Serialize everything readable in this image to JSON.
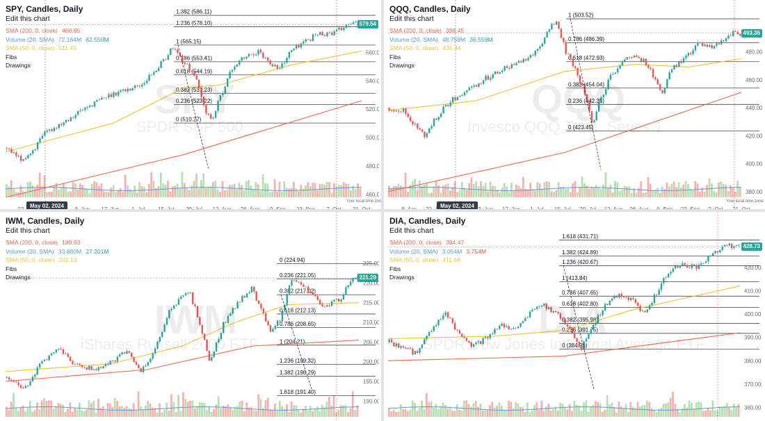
{
  "colors": {
    "up": "#26a69a",
    "down": "#ef5350",
    "sma200": "#f0674a",
    "sma50": "#f2c230",
    "volma": "#5b9bd5",
    "volup": "#b8dfb4",
    "voldown": "#f3b4b0",
    "tag": "#26a69a"
  },
  "panels": [
    {
      "id": "spy",
      "title": "SPY, Candles, Daily",
      "edit": "Edit this chart",
      "legend": [
        {
          "label": "SMA (200, 0, close)",
          "values": [
            "468.85"
          ],
          "color": "#f0674a"
        },
        {
          "label": "Volume (20, SMA)",
          "values": [
            "72.164M",
            "62.550M"
          ],
          "color": "#5b9bd5",
          "value_colors": [
            "#5b9bd5",
            "#26a69a"
          ]
        },
        {
          "label": "SMA (50, 0, close)",
          "values": [
            "511.45"
          ],
          "color": "#f2c230"
        },
        {
          "label": "Fibs",
          "values": [],
          "color": "#131722"
        },
        {
          "label": "Drawings",
          "values": [],
          "color": "#131722"
        }
      ],
      "watermark": {
        "symbol": "SPY",
        "name": "SPDR S&P 500"
      },
      "price_tag": "579.54",
      "date_tag": "May 02, 2024",
      "timezone": "Your local time zone",
      "y_ticks": [
        "560.00",
        "540.00",
        "520.00",
        "500.00",
        "480.00",
        "460.00"
      ],
      "x_ticks": [
        "22. Apr",
        "20. May",
        "3. Jun",
        "17. Jun",
        "1. Jul",
        "15. Jul",
        "29. Jul",
        "12. Aug",
        "26. Aug",
        "9. Sep",
        "23. Sep",
        "7. Oct",
        "21. Oct"
      ],
      "fibs": [
        "1.382 (586.11)",
        "1.236 (578.10)",
        "1 (565.15)",
        "0.786 (553.41)",
        "0.618 (544.19)",
        "0.382 (531.23)",
        "0.236 (523.22)",
        "0 (510.27)"
      ],
      "chart_data": {
        "type": "candlestick",
        "ylim": [
          458,
          592
        ],
        "price_path": [
          [
            0,
            492
          ],
          [
            0.04,
            484
          ],
          [
            0.07,
            490
          ],
          [
            0.11,
            503
          ],
          [
            0.17,
            513
          ],
          [
            0.23,
            522
          ],
          [
            0.3,
            531
          ],
          [
            0.38,
            537
          ],
          [
            0.44,
            553
          ],
          [
            0.47,
            564
          ],
          [
            0.5,
            553
          ],
          [
            0.53,
            545
          ],
          [
            0.56,
            520
          ],
          [
            0.58,
            512
          ],
          [
            0.61,
            533
          ],
          [
            0.64,
            550
          ],
          [
            0.67,
            556
          ],
          [
            0.71,
            561
          ],
          [
            0.74,
            554
          ],
          [
            0.77,
            548
          ],
          [
            0.8,
            560
          ],
          [
            0.83,
            566
          ],
          [
            0.88,
            573
          ],
          [
            0.93,
            574
          ],
          [
            0.97,
            580
          ]
        ],
        "sma200": [
          [
            0,
            458
          ],
          [
            0.5,
            488
          ],
          [
            1,
            526
          ]
        ],
        "sma50": [
          [
            0,
            490
          ],
          [
            0.3,
            510
          ],
          [
            0.5,
            535
          ],
          [
            0.6,
            537
          ],
          [
            0.8,
            551
          ],
          [
            1,
            561
          ]
        ]
      }
    },
    {
      "id": "qqq",
      "title": "QQQ, Candles, Daily",
      "edit": "Edit this chart",
      "legend": [
        {
          "label": "SMA (200, 0, close)",
          "values": [
            "398.45"
          ],
          "color": "#f0674a"
        },
        {
          "label": "Volume (20, SMA)",
          "values": [
            "48.759M",
            "36.559M"
          ],
          "color": "#5b9bd5",
          "value_colors": [
            "#5b9bd5",
            "#26a69a"
          ]
        },
        {
          "label": "SMA (50, 0, close)",
          "values": [
            "436.44"
          ],
          "color": "#f2c230"
        },
        {
          "label": "Fibs",
          "values": [],
          "color": "#131722"
        },
        {
          "label": "Drawings",
          "values": [],
          "color": "#131722"
        }
      ],
      "watermark": {
        "symbol": "QQQ",
        "name": "Invesco QQQ Trust, Series 1"
      },
      "price_tag": "493.36",
      "date_tag": "May 02, 2024",
      "timezone": "Your local time zone",
      "y_ticks": [
        "480.00",
        "460.00",
        "440.00",
        "420.00",
        "400.00",
        "380.00"
      ],
      "x_ticks": [
        "8. Apr",
        "22. Apr",
        "20. May",
        "3. Jun",
        "17. Jun",
        "1. Jul",
        "15. Jul",
        "29. Jul",
        "12. Aug",
        "26. Aug",
        "9. Sep",
        "23. Sep",
        "7. Oct",
        "21. Oct"
      ],
      "fibs": [
        "1 (503.52)",
        "0.786 (486.39)",
        "0.618 (472.93)",
        "0.382 (454.04)",
        "0.236 (442.35)",
        "0 (423.45)"
      ],
      "chart_data": {
        "type": "candlestick",
        "ylim": [
          376,
          512
        ],
        "price_path": [
          [
            0,
            440
          ],
          [
            0.04,
            438
          ],
          [
            0.08,
            425
          ],
          [
            0.1,
            420
          ],
          [
            0.14,
            435
          ],
          [
            0.18,
            446
          ],
          [
            0.24,
            455
          ],
          [
            0.3,
            465
          ],
          [
            0.36,
            472
          ],
          [
            0.42,
            480
          ],
          [
            0.46,
            498
          ],
          [
            0.48,
            500
          ],
          [
            0.5,
            482
          ],
          [
            0.53,
            468
          ],
          [
            0.56,
            448
          ],
          [
            0.58,
            425
          ],
          [
            0.6,
            445
          ],
          [
            0.63,
            462
          ],
          [
            0.66,
            472
          ],
          [
            0.7,
            478
          ],
          [
            0.73,
            472
          ],
          [
            0.76,
            460
          ],
          [
            0.78,
            450
          ],
          [
            0.8,
            466
          ],
          [
            0.84,
            475
          ],
          [
            0.88,
            486
          ],
          [
            0.92,
            482
          ],
          [
            0.96,
            490
          ],
          [
            0.98,
            493
          ]
        ],
        "sma200": [
          [
            0,
            380
          ],
          [
            0.5,
            408
          ],
          [
            1,
            451
          ]
        ],
        "sma50": [
          [
            0,
            438
          ],
          [
            0.25,
            445
          ],
          [
            0.5,
            466
          ],
          [
            0.7,
            471
          ],
          [
            0.85,
            469
          ],
          [
            1,
            475
          ]
        ]
      }
    },
    {
      "id": "iwm",
      "title": "IWM, Candles, Daily",
      "edit": "Edit this chart",
      "legend": [
        {
          "label": "SMA (200, 0, close)",
          "values": [
            "189.93"
          ],
          "color": "#f0674a"
        },
        {
          "label": "Volume (20, SMA)",
          "values": [
            "33.680M",
            "27.201M"
          ],
          "color": "#5b9bd5",
          "value_colors": [
            "#5b9bd5",
            "#26a69a"
          ]
        },
        {
          "label": "SMA (50, 0, close)",
          "values": [
            "202.13"
          ],
          "color": "#f2c230"
        },
        {
          "label": "Fibs",
          "values": [],
          "color": "#131722"
        },
        {
          "label": "Drawings",
          "values": [],
          "color": "#131722"
        }
      ],
      "watermark": {
        "symbol": "IWM",
        "name": "iShares Russell 2000 ETF"
      },
      "price_tag": "221.29",
      "y_ticks": [
        "225.00",
        "220.00",
        "215.00",
        "210.00",
        "205.00",
        "200.00",
        "195.00",
        "190.00"
      ],
      "fibs": [
        "0 (224.94)",
        "0.236 (221.05)",
        "0.382 (217.02)",
        "0.618 (212.13)",
        "0.786 (208.65)",
        "1 (204.21)",
        "1.236 (199.32)",
        "1.382 (196.29)",
        "1.618 (191.40)"
      ],
      "chart_data": {
        "type": "candlestick",
        "ylim": [
          186,
          231
        ],
        "price_path": [
          [
            0,
            196
          ],
          [
            0.05,
            193
          ],
          [
            0.1,
            200
          ],
          [
            0.15,
            203
          ],
          [
            0.2,
            199
          ],
          [
            0.25,
            198
          ],
          [
            0.3,
            200
          ],
          [
            0.35,
            203
          ],
          [
            0.38,
            197
          ],
          [
            0.42,
            203
          ],
          [
            0.47,
            214
          ],
          [
            0.52,
            218
          ],
          [
            0.55,
            210
          ],
          [
            0.58,
            200
          ],
          [
            0.62,
            210
          ],
          [
            0.66,
            215
          ],
          [
            0.7,
            219
          ],
          [
            0.72,
            214
          ],
          [
            0.75,
            208
          ],
          [
            0.78,
            211
          ],
          [
            0.81,
            221
          ],
          [
            0.86,
            218
          ],
          [
            0.9,
            214
          ],
          [
            0.95,
            216
          ],
          [
            0.98,
            221
          ]
        ],
        "sma200": [
          [
            0,
            195
          ],
          [
            0.4,
            198
          ],
          [
            0.7,
            204
          ],
          [
            1,
            205.5
          ]
        ],
        "sma50": [
          [
            0,
            197.5
          ],
          [
            0.3,
            199.5
          ],
          [
            0.5,
            204
          ],
          [
            0.65,
            210
          ],
          [
            0.8,
            214.5
          ],
          [
            1,
            215
          ]
        ]
      }
    },
    {
      "id": "dia",
      "title": "DIA, Candles, Daily",
      "edit": "Edit this chart",
      "legend": [
        {
          "label": "SMA (200, 0, close)",
          "values": [
            "394.47"
          ],
          "color": "#f0674a"
        },
        {
          "label": "Volume (20, SMA)",
          "values": [
            "3.054M",
            "3.754M"
          ],
          "color": "#5b9bd5",
          "value_colors": [
            "#5b9bd5",
            "#ef5350"
          ]
        },
        {
          "label": "SMA (50, 0, close)",
          "values": [
            "411.68"
          ],
          "color": "#f2c230"
        },
        {
          "label": "Fibs",
          "values": [],
          "color": "#131722"
        },
        {
          "label": "Drawings",
          "values": [],
          "color": "#131722"
        }
      ],
      "watermark": {
        "symbol": "DIA",
        "name": "SPDR Dow Jones Industrial Average ETF"
      },
      "price_tag": "428.73",
      "y_ticks": [
        "420.00",
        "410.00",
        "400.00",
        "390.00",
        "380.00",
        "370.00",
        "360.00"
      ],
      "fibs": [
        "1.618 (431.71)",
        "1.382 (424.89)",
        "1.236 (420.67)",
        "1 (413.84)",
        "0.786 (407.65)",
        "0.618 (402.80)",
        "0.382 (395.98)",
        "0.236 (391.75)",
        "0 (384.93)"
      ],
      "chart_data": {
        "type": "candlestick",
        "ylim": [
          356,
          436
        ],
        "price_path": [
          [
            0,
            388
          ],
          [
            0.04,
            385
          ],
          [
            0.08,
            383
          ],
          [
            0.12,
            393
          ],
          [
            0.16,
            400
          ],
          [
            0.2,
            392
          ],
          [
            0.24,
            386
          ],
          [
            0.28,
            390
          ],
          [
            0.32,
            396
          ],
          [
            0.36,
            393
          ],
          [
            0.4,
            400
          ],
          [
            0.44,
            404
          ],
          [
            0.48,
            400
          ],
          [
            0.5,
            397
          ],
          [
            0.53,
            390
          ],
          [
            0.55,
            385
          ],
          [
            0.58,
            395
          ],
          [
            0.62,
            404
          ],
          [
            0.66,
            409
          ],
          [
            0.7,
            405
          ],
          [
            0.73,
            400
          ],
          [
            0.76,
            408
          ],
          [
            0.8,
            418
          ],
          [
            0.84,
            421
          ],
          [
            0.88,
            420
          ],
          [
            0.92,
            425
          ],
          [
            0.96,
            429
          ]
        ],
        "sma200": [
          [
            0,
            380
          ],
          [
            0.5,
            382
          ],
          [
            0.7,
            386
          ],
          [
            1,
            392
          ]
        ],
        "sma50": [
          [
            0,
            389.5
          ],
          [
            0.3,
            390.5
          ],
          [
            0.5,
            393
          ],
          [
            0.7,
            402
          ],
          [
            0.85,
            407
          ],
          [
            1,
            412
          ]
        ]
      }
    }
  ]
}
